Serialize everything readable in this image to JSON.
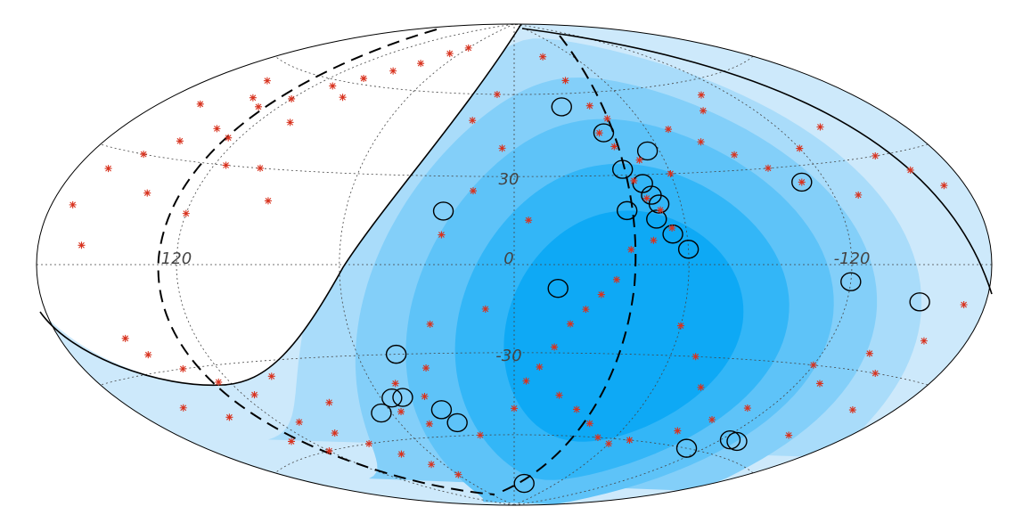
{
  "map": {
    "labels": [
      {
        "text": "120",
        "lon": 120,
        "lat": 0
      },
      {
        "text": "0",
        "lon": 0,
        "lat": 0
      },
      {
        "text": "-120",
        "lon": -120,
        "lat": 0
      },
      {
        "text": "30",
        "lon": 0,
        "lat": 30
      },
      {
        "text": "-30",
        "lon": 0,
        "lat": -30
      }
    ],
    "events": [
      [
        150,
        55
      ],
      [
        140,
        50
      ],
      [
        130,
        48
      ],
      [
        160,
        45
      ],
      [
        120,
        52
      ],
      [
        110,
        58
      ],
      [
        100,
        62
      ],
      [
        90,
        66
      ],
      [
        135,
        40
      ],
      [
        145,
        35
      ],
      [
        125,
        38
      ],
      [
        155,
        30
      ],
      [
        165,
        25
      ],
      [
        170,
        15
      ],
      [
        115,
        30
      ],
      [
        105,
        45
      ],
      [
        95,
        55
      ],
      [
        80,
        70
      ],
      [
        70,
        75
      ],
      [
        60,
        78
      ],
      [
        100,
        30
      ],
      [
        90,
        20
      ],
      [
        120,
        15
      ],
      [
        140,
        20
      ],
      [
        160,
        5
      ],
      [
        150,
        -20
      ],
      [
        145,
        -25
      ],
      [
        135,
        -30
      ],
      [
        125,
        -35
      ],
      [
        115,
        -40
      ],
      [
        110,
        -50
      ],
      [
        100,
        -55
      ],
      [
        90,
        -60
      ],
      [
        130,
        -55
      ],
      [
        140,
        -45
      ],
      [
        155,
        -40
      ],
      [
        120,
        -60
      ],
      [
        80,
        -65
      ],
      [
        70,
        -70
      ],
      [
        60,
        -75
      ],
      [
        100,
        -35
      ],
      [
        85,
        -45
      ],
      [
        -30,
        75
      ],
      [
        -35,
        65
      ],
      [
        -40,
        55
      ],
      [
        -45,
        50
      ],
      [
        -38,
        45
      ],
      [
        -42,
        40
      ],
      [
        -50,
        35
      ],
      [
        -45,
        28
      ],
      [
        -48,
        22
      ],
      [
        -52,
        18
      ],
      [
        -55,
        12
      ],
      [
        -48,
        8
      ],
      [
        -40,
        5
      ],
      [
        -35,
        -5
      ],
      [
        -30,
        -10
      ],
      [
        -25,
        -15
      ],
      [
        -20,
        -20
      ],
      [
        -15,
        -28
      ],
      [
        -10,
        -35
      ],
      [
        -5,
        -40
      ],
      [
        -20,
        -45
      ],
      [
        -30,
        -50
      ],
      [
        -40,
        -55
      ],
      [
        -50,
        -60
      ],
      [
        -60,
        -62
      ],
      [
        -70,
        -60
      ],
      [
        -80,
        40
      ],
      [
        -90,
        35
      ],
      [
        -100,
        30
      ],
      [
        -110,
        25
      ],
      [
        -120,
        35
      ],
      [
        -130,
        20
      ],
      [
        -140,
        40
      ],
      [
        -150,
        30
      ],
      [
        -160,
        25
      ],
      [
        -170,
        20
      ],
      [
        -95,
        50
      ],
      [
        -105,
        55
      ],
      [
        -70,
        45
      ],
      [
        -60,
        30
      ],
      [
        -120,
        -30
      ],
      [
        -130,
        -35
      ],
      [
        -140,
        -25
      ],
      [
        -150,
        -30
      ],
      [
        -160,
        -20
      ],
      [
        -170,
        -10
      ],
      [
        -110,
        -45
      ],
      [
        -100,
        -50
      ],
      [
        -90,
        -55
      ],
      [
        -80,
        -40
      ],
      [
        -70,
        -30
      ],
      [
        -60,
        -20
      ],
      [
        -150,
        -50
      ],
      [
        -160,
        -40
      ],
      [
        10,
        60
      ],
      [
        20,
        50
      ],
      [
        5,
        40
      ],
      [
        15,
        25
      ],
      [
        25,
        10
      ],
      [
        30,
        -20
      ],
      [
        35,
        -35
      ],
      [
        40,
        -45
      ],
      [
        45,
        -55
      ],
      [
        20,
        -60
      ],
      [
        10,
        -15
      ],
      [
        0,
        -50
      ],
      [
        -5,
        15
      ],
      [
        50,
        -40
      ],
      [
        55,
        -50
      ]
    ],
    "circles": [
      [
        -25,
        55
      ],
      [
        -40,
        45
      ],
      [
        -55,
        38
      ],
      [
        -42,
        32
      ],
      [
        -48,
        27
      ],
      [
        -50,
        23
      ],
      [
        -52,
        20
      ],
      [
        -50,
        15
      ],
      [
        -55,
        10
      ],
      [
        -60,
        5
      ],
      [
        -40,
        18
      ],
      [
        25,
        18
      ],
      [
        -15,
        -8
      ],
      [
        -110,
        25
      ],
      [
        -120,
        -5
      ],
      [
        -150,
        -10
      ],
      [
        45,
        -30
      ],
      [
        50,
        -45
      ],
      [
        55,
        -45
      ],
      [
        65,
        -50
      ],
      [
        35,
        -50
      ],
      [
        30,
        -55
      ],
      [
        -15,
        -80
      ],
      [
        -110,
        -60
      ],
      [
        -130,
        -55
      ],
      [
        -125,
        -55
      ]
    ]
  }
}
